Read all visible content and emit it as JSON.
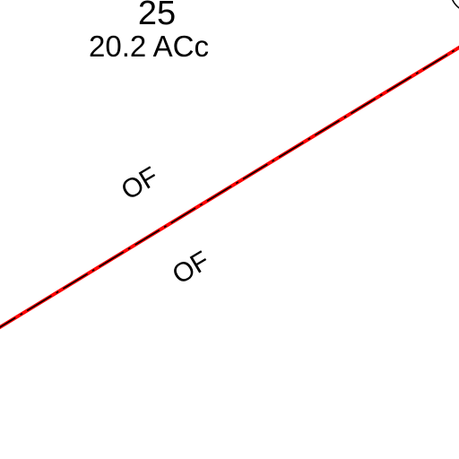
{
  "map": {
    "parcel": {
      "number": "25",
      "area": "20.2 ACc"
    },
    "boundary_labels": {
      "upper_side": "OF",
      "lower_side": "OF"
    },
    "line_colors": {
      "outer": "#ff0000",
      "inner_dash": "#000000"
    }
  }
}
